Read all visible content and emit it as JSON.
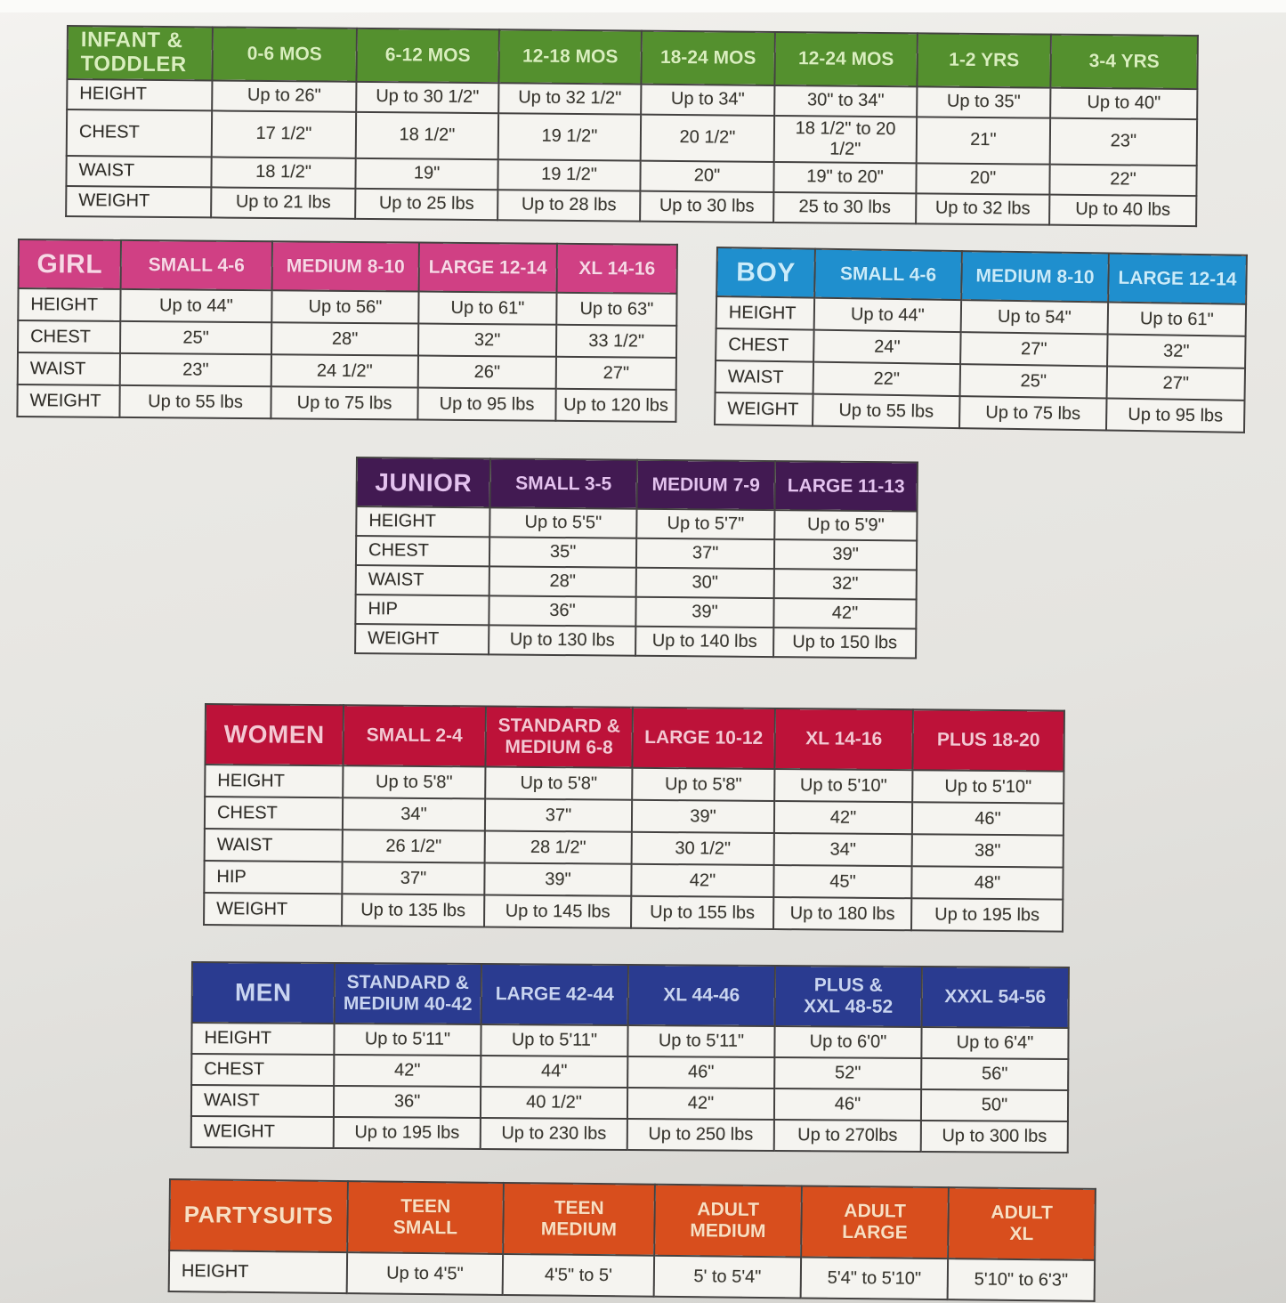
{
  "tables": [
    {
      "id": "infant-toddler",
      "title": "INFANT &\nTODDLER",
      "colors": {
        "header_bg": "#54902e",
        "header_text": "#d9efbe"
      },
      "columns": [
        "0-6 MOS",
        "6-12 MOS",
        "12-18 MOS",
        "18-24 MOS",
        "12-24 MOS",
        "1-2 YRS",
        "3-4 YRS"
      ],
      "rows": [
        {
          "label": "HEIGHT",
          "values": [
            "Up to 26\"",
            "Up to 30 1/2\"",
            "Up to 32 1/2\"",
            "Up to 34\"",
            "30\" to 34\"",
            "Up to 35\"",
            "Up to 40\""
          ]
        },
        {
          "label": "CHEST",
          "values": [
            "17 1/2\"",
            "18 1/2\"",
            "19 1/2\"",
            "20 1/2\"",
            "18 1/2\" to 20 1/2\"",
            "21\"",
            "23\""
          ]
        },
        {
          "label": "WAIST",
          "values": [
            "18 1/2\"",
            "19\"",
            "19 1/2\"",
            "20\"",
            "19\" to 20\"",
            "20\"",
            "22\""
          ]
        },
        {
          "label": "WEIGHT",
          "values": [
            "Up to 21 lbs",
            "Up to 25 lbs",
            "Up to 28 lbs",
            "Up to 30 lbs",
            "25 to 30 lbs",
            "Up to 32 lbs",
            "Up to 40 lbs"
          ]
        }
      ]
    },
    {
      "id": "girl",
      "title": "GIRL",
      "colors": {
        "header_bg": "#d04084",
        "header_text": "#f8d8e6"
      },
      "columns": [
        "SMALL 4-6",
        "MEDIUM 8-10",
        "LARGE 12-14",
        "XL 14-16"
      ],
      "rows": [
        {
          "label": "HEIGHT",
          "values": [
            "Up to 44\"",
            "Up to 56\"",
            "Up to 61\"",
            "Up to 63\""
          ]
        },
        {
          "label": "CHEST",
          "values": [
            "25\"",
            "28\"",
            "32\"",
            "33 1/2\""
          ]
        },
        {
          "label": "WAIST",
          "values": [
            "23\"",
            "24 1/2\"",
            "26\"",
            "27\""
          ]
        },
        {
          "label": "WEIGHT",
          "values": [
            "Up to 55 lbs",
            "Up to 75 lbs",
            "Up to 95 lbs",
            "Up to 120 lbs"
          ]
        }
      ]
    },
    {
      "id": "boy",
      "title": "BOY",
      "colors": {
        "header_bg": "#1f8fce",
        "header_text": "#caecfb"
      },
      "columns": [
        "SMALL 4-6",
        "MEDIUM 8-10",
        "LARGE 12-14"
      ],
      "rows": [
        {
          "label": "HEIGHT",
          "values": [
            "Up to 44\"",
            "Up to 54\"",
            "Up to 61\""
          ]
        },
        {
          "label": "CHEST",
          "values": [
            "24\"",
            "27\"",
            "32\""
          ]
        },
        {
          "label": "WAIST",
          "values": [
            "22\"",
            "25\"",
            "27\""
          ]
        },
        {
          "label": "WEIGHT",
          "values": [
            "Up to 55 lbs",
            "Up to 75 lbs",
            "Up to 95 lbs"
          ]
        }
      ]
    },
    {
      "id": "junior",
      "title": "JUNIOR",
      "colors": {
        "header_bg": "#421a52",
        "header_text": "#e4c2ef"
      },
      "columns": [
        "SMALL 3-5",
        "MEDIUM 7-9",
        "LARGE 11-13"
      ],
      "rows": [
        {
          "label": "HEIGHT",
          "values": [
            "Up to 5'5\"",
            "Up to 5'7\"",
            "Up to 5'9\""
          ]
        },
        {
          "label": "CHEST",
          "values": [
            "35\"",
            "37\"",
            "39\""
          ]
        },
        {
          "label": "WAIST",
          "values": [
            "28\"",
            "30\"",
            "32\""
          ]
        },
        {
          "label": "HIP",
          "values": [
            "36\"",
            "39\"",
            "42\""
          ]
        },
        {
          "label": "WEIGHT",
          "values": [
            "Up to 130 lbs",
            "Up to 140 lbs",
            "Up to 150 lbs"
          ]
        }
      ]
    },
    {
      "id": "women",
      "title": "WOMEN",
      "colors": {
        "header_bg": "#bd1239",
        "header_text": "#f5c8d3"
      },
      "columns": [
        "SMALL 2-4",
        "STANDARD &\nMEDIUM 6-8",
        "LARGE 10-12",
        "XL 14-16",
        "PLUS 18-20"
      ],
      "rows": [
        {
          "label": "HEIGHT",
          "values": [
            "Up to 5'8\"",
            "Up to 5'8\"",
            "Up to 5'8\"",
            "Up to 5'10\"",
            "Up to 5'10\""
          ]
        },
        {
          "label": "CHEST",
          "values": [
            "34\"",
            "37\"",
            "39\"",
            "42\"",
            "46\""
          ]
        },
        {
          "label": "WAIST",
          "values": [
            "26 1/2\"",
            "28 1/2\"",
            "30 1/2\"",
            "34\"",
            "38\""
          ]
        },
        {
          "label": "HIP",
          "values": [
            "37\"",
            "39\"",
            "42\"",
            "45\"",
            "48\""
          ]
        },
        {
          "label": "WEIGHT",
          "values": [
            "Up to 135 lbs",
            "Up to 145 lbs",
            "Up to 155 lbs",
            "Up to 180 lbs",
            "Up to 195 lbs"
          ]
        }
      ]
    },
    {
      "id": "men",
      "title": "MEN",
      "colors": {
        "header_bg": "#2a3b90",
        "header_text": "#c8d4f1"
      },
      "columns": [
        "STANDARD &\nMEDIUM 40-42",
        "LARGE 42-44",
        "XL 44-46",
        "PLUS &\nXXL 48-52",
        "XXXL 54-56"
      ],
      "rows": [
        {
          "label": "HEIGHT",
          "values": [
            "Up to 5'11\"",
            "Up to 5'11\"",
            "Up to 5'11\"",
            "Up to 6'0\"",
            "Up to 6'4\""
          ]
        },
        {
          "label": "CHEST",
          "values": [
            "42\"",
            "44\"",
            "46\"",
            "52\"",
            "56\""
          ]
        },
        {
          "label": "WAIST",
          "values": [
            "36\"",
            "40 1/2\"",
            "42\"",
            "46\"",
            "50\""
          ]
        },
        {
          "label": "WEIGHT",
          "values": [
            "Up to 195 lbs",
            "Up to 230 lbs",
            "Up to 250 lbs",
            "Up to 270lbs",
            "Up to 300 lbs"
          ]
        }
      ]
    },
    {
      "id": "partysuits",
      "title": "PARTYSUITS",
      "colors": {
        "header_bg": "#d84e1d",
        "header_text": "#f9dfc2"
      },
      "columns": [
        "TEEN\nSMALL",
        "TEEN\nMEDIUM",
        "ADULT\nMEDIUM",
        "ADULT\nLARGE",
        "ADULT\nXL"
      ],
      "rows": [
        {
          "label": "HEIGHT",
          "values": [
            "Up to 4'5\"",
            "4'5\" to 5'",
            "5' to 5'4\"",
            "5'4\" to 5'10\"",
            "5'10\" to 6'3\""
          ]
        }
      ]
    }
  ]
}
